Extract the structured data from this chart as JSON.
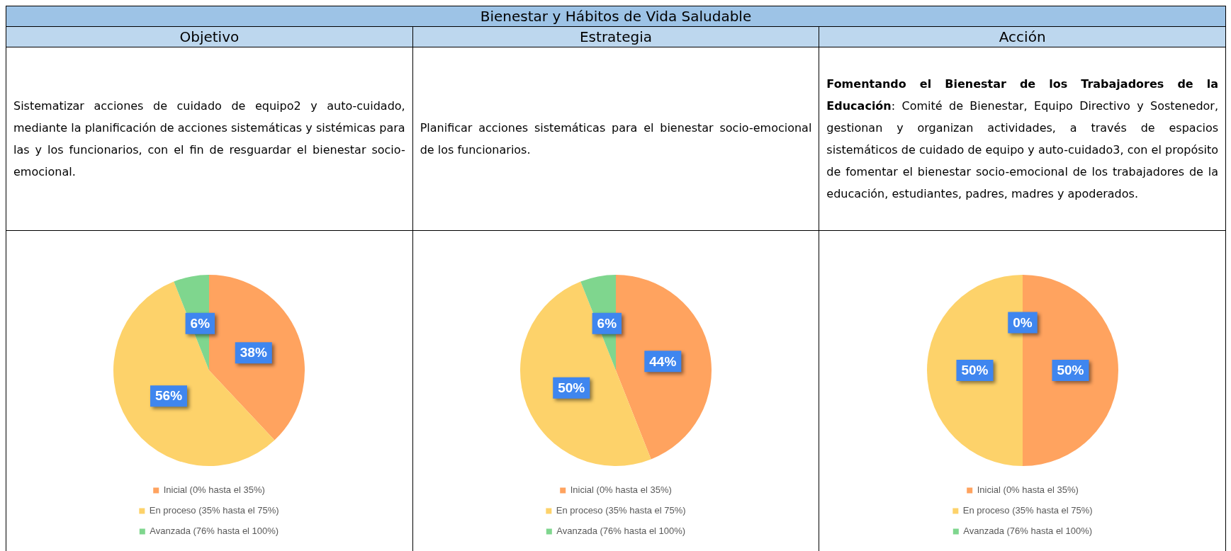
{
  "chart_data": [
    {
      "type": "other",
      "title": "Bienestar y Hábitos de Vida Saludable",
      "categories": [
        "Objetivo",
        "Estrategia",
        "Acción"
      ],
      "annotations": [
        "Sistematizar acciones de cuidado de equipo2 y auto-cuidado, mediante la planificación de acciones sistemáticas y sistémicas para las y los funcionarios, con el fin de resguardar el bienestar socio-emocional.",
        "Planificar acciones sistemáticas para el bienestar socio-emocional de los funcionarios.",
        "Fomentando el Bienestar de los Trabajadores de la Educación",
        ": Comité de Bienestar, Equipo Directivo y Sostenedor, gestionan y organizan actividades, a través de espacios sistemáticos de cuidado de equipo y auto-cuidado3, con el propósito de fomentar el bienestar socio-emocional de los trabajadores de la educación, estudiantes, padres, madres y apoderados."
      ]
    },
    {
      "type": "pie",
      "categories": [
        "Inicial (0% hasta el 35%)",
        "En proceso (35% hasta el 75%)",
        "Avanzada (76% hasta el 100%)"
      ],
      "values": [
        38,
        56,
        6
      ],
      "value_labels": [
        "38%",
        "56%",
        "6%"
      ],
      "colors": [
        "#ffa35f",
        "#fdd26a",
        "#7fd68e"
      ],
      "legend": "bottom"
    },
    {
      "type": "pie",
      "categories": [
        "Inicial (0% hasta el 35%)",
        "En proceso (35% hasta el 75%)",
        "Avanzada (76% hasta el 100%)"
      ],
      "values": [
        44,
        50,
        6
      ],
      "value_labels": [
        "44%",
        "50%",
        "6%"
      ],
      "colors": [
        "#ffa35f",
        "#fdd26a",
        "#7fd68e"
      ],
      "legend": "bottom"
    },
    {
      "type": "pie",
      "categories": [
        "Inicial (0% hasta el 35%)",
        "En proceso (35% hasta el 75%)",
        "Avanzada (76% hasta el 100%)"
      ],
      "values": [
        50,
        50,
        0
      ],
      "value_labels": [
        "50%",
        "50%",
        "0%"
      ],
      "colors": [
        "#ffa35f",
        "#fdd26a",
        "#7fd68e"
      ],
      "legend": "bottom"
    }
  ]
}
